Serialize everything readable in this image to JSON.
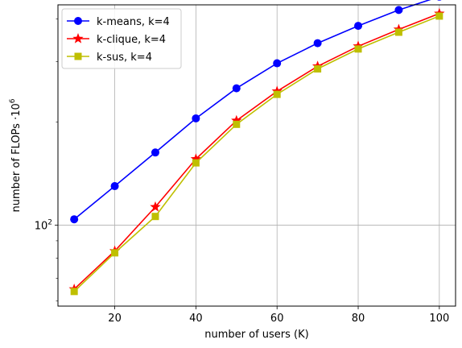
{
  "chart_data": {
    "type": "line",
    "xlabel": "number of users (K)",
    "ylabel": "number of FLOPs ·10",
    "ylabel_exponent": "6",
    "y_scale": "log",
    "x": [
      10,
      20,
      30,
      40,
      50,
      60,
      70,
      80,
      90,
      100
    ],
    "xlim": [
      6,
      104
    ],
    "ylim": [
      58,
      440
    ],
    "x_ticks": [
      20,
      40,
      60,
      80,
      100
    ],
    "y_major_tick": {
      "base": "10",
      "exponent": "2",
      "value": 100
    },
    "y_minor_ticks": [
      60,
      70,
      80,
      90,
      200,
      300,
      400
    ],
    "grid": true,
    "legend_position": "top-left",
    "series": [
      {
        "name": "k-means, k=4",
        "color": "#0000ff",
        "marker": "circle",
        "values": [
          104,
          130,
          163,
          205,
          251,
          297,
          340,
          382,
          425,
          465
        ]
      },
      {
        "name": "k-clique, k=4",
        "color": "#ff0000",
        "marker": "star",
        "values": [
          65,
          84,
          113,
          156,
          202,
          246,
          291,
          333,
          373,
          415
        ]
      },
      {
        "name": "k-sus, k=4",
        "color": "#bfbf00",
        "marker": "square",
        "values": [
          64,
          83,
          106,
          152,
          197,
          241,
          286,
          327,
          366,
          408
        ]
      }
    ]
  }
}
